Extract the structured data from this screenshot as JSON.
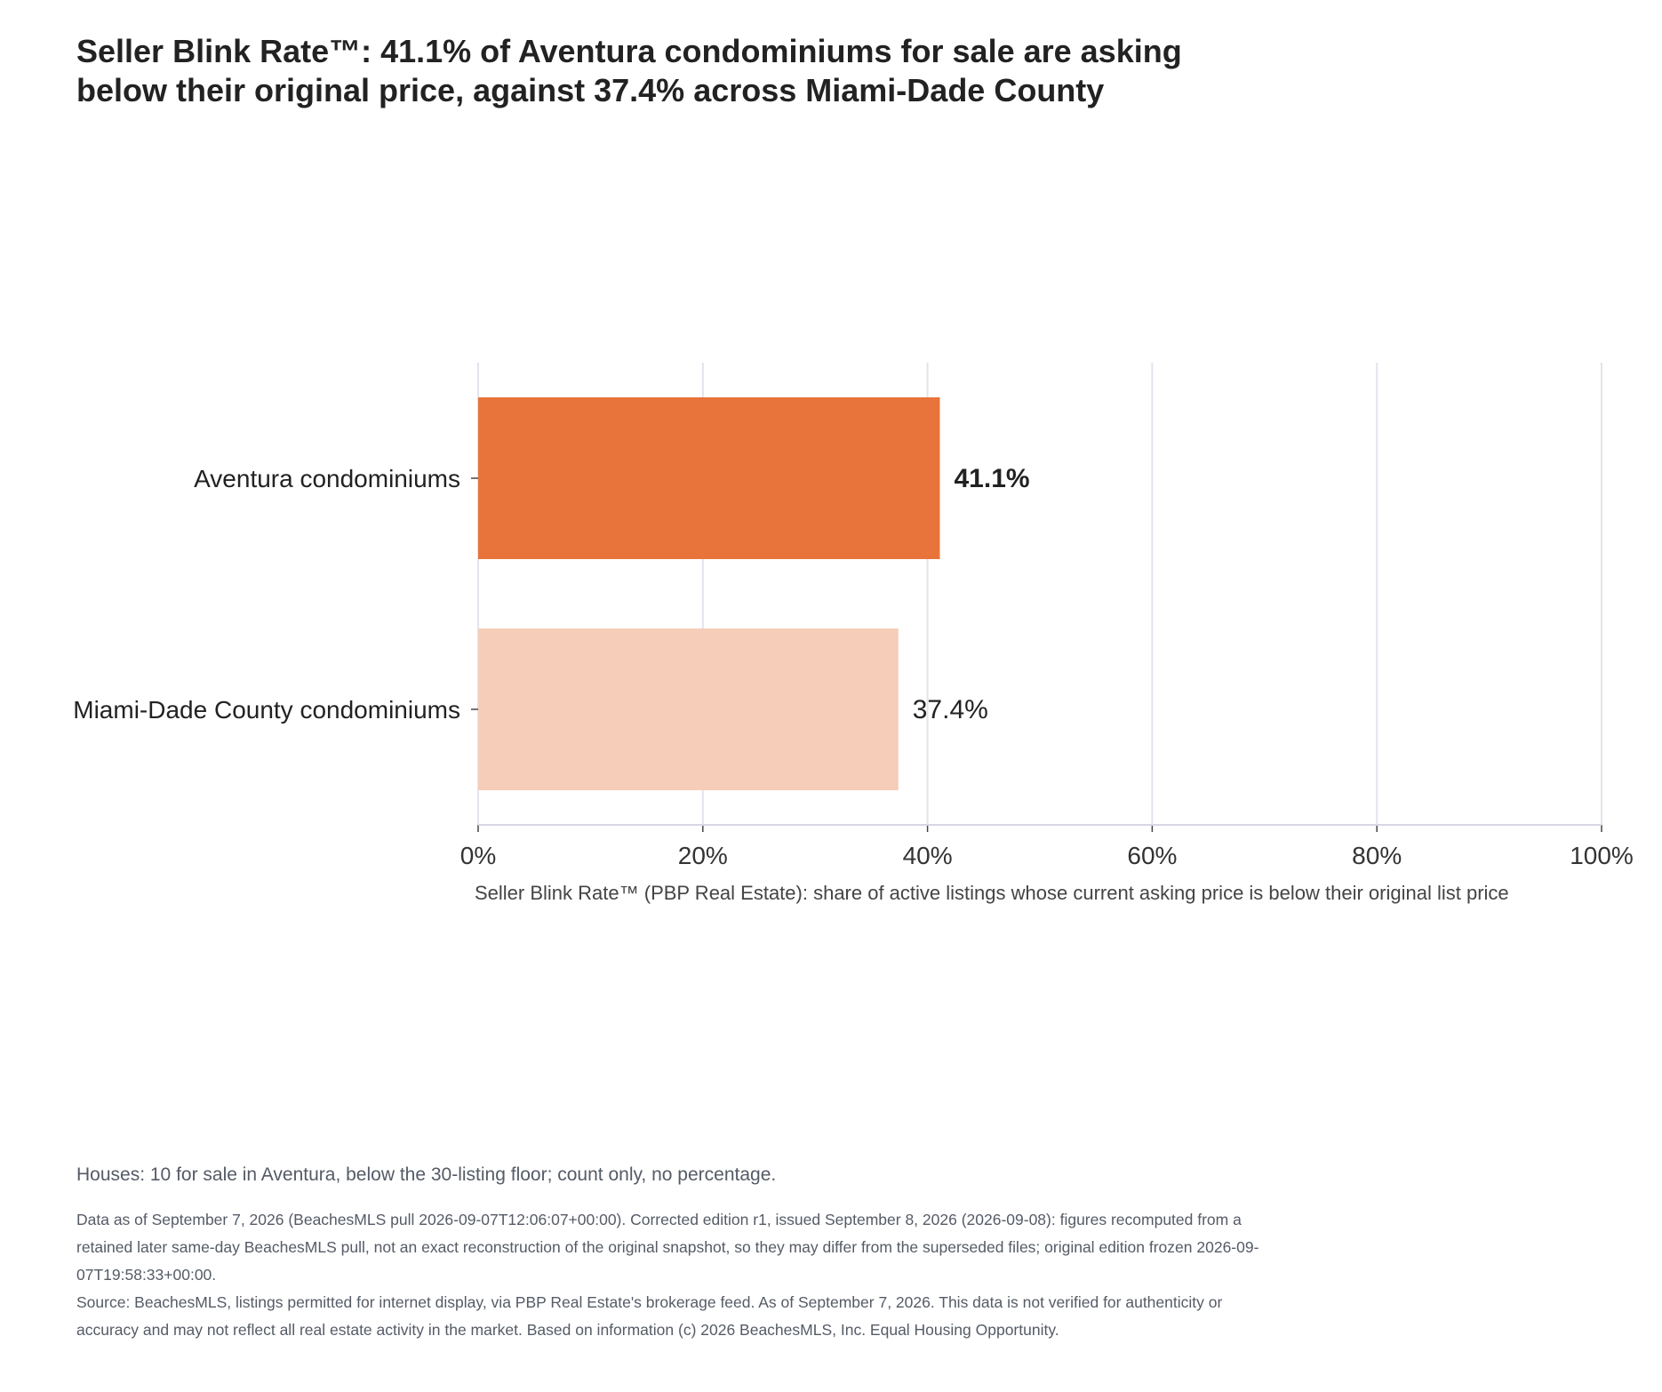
{
  "chart_data": {
    "type": "bar",
    "orientation": "horizontal",
    "title": "Seller Blink Rate™: 41.1% of Aventura condominiums for sale are asking below their original price, against 37.4% across Miami-Dade County",
    "categories": [
      "Aventura condominiums",
      "Miami-Dade County condominiums"
    ],
    "values": [
      41.1,
      37.4
    ],
    "value_labels": [
      "41.1%",
      "37.4%"
    ],
    "bar_colors": [
      "#e8743b",
      "#f6cdb9"
    ],
    "xlabel": "Seller Blink Rate™ (PBP Real Estate): share of active listings whose current asking price is below their original list price",
    "ylabel": "",
    "xlim": [
      0,
      100
    ],
    "x_ticks": [
      0,
      20,
      40,
      60,
      80,
      100
    ],
    "x_tick_labels": [
      "0%",
      "20%",
      "40%",
      "60%",
      "80%",
      "100%"
    ],
    "grid": true,
    "legend": "none"
  },
  "notes": {
    "houses": "Houses: 10 for sale in Aventura, below the 30-listing floor; count only, no percentage.",
    "as_of": "Data as of September 7, 2026 (BeachesMLS pull 2026-09-07T12:06:07+00:00). Corrected edition r1, issued September 8, 2026 (2026-09-08): figures recomputed from a retained later same-day BeachesMLS pull, not an exact reconstruction of the original snapshot, so they may differ from the superseded files; original edition frozen 2026-09-07T19:58:33+00:00.",
    "source": "Source: BeachesMLS, listings permitted for internet display, via PBP Real Estate's brokerage feed. As of September 7, 2026. This data is not verified for authenticity or accuracy and may not reflect all real estate activity in the market. Based on information (c) 2026 BeachesMLS, Inc. Equal Housing Opportunity."
  },
  "colors": {
    "grid": "#e3e3ee",
    "axis": "#d6d6e6"
  }
}
